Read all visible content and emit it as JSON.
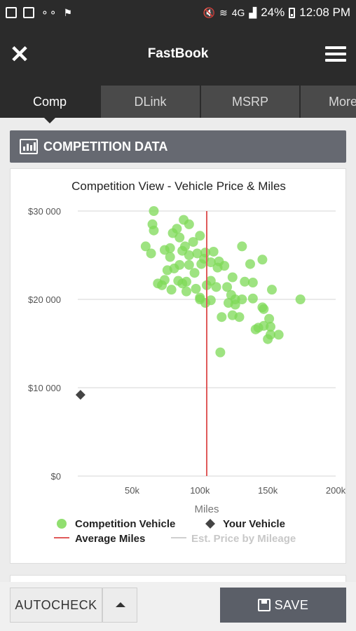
{
  "status_bar": {
    "battery": "24%",
    "time": "12:08 PM",
    "network": "4G"
  },
  "app": {
    "title": "FastBook"
  },
  "tabs": [
    {
      "label": "Comp",
      "active": true
    },
    {
      "label": "DLink",
      "active": false
    },
    {
      "label": "MSRP",
      "active": false
    },
    {
      "label": "More",
      "active": false
    }
  ],
  "section": {
    "title": "COMPETITION DATA",
    "icon": "bar-chart-icon"
  },
  "chart_data": {
    "type": "scatter",
    "title": "Competition View - Vehicle Price & Miles",
    "xlabel": "Miles",
    "ylabel": "",
    "xlim": [
      10000,
      200000
    ],
    "ylim": [
      0,
      30000
    ],
    "x_ticks": [
      {
        "value": 50000,
        "label": "50k"
      },
      {
        "value": 100000,
        "label": "100k"
      },
      {
        "value": 150000,
        "label": "150k"
      },
      {
        "value": 200000,
        "label": "200k"
      }
    ],
    "y_ticks": [
      {
        "value": 0,
        "label": "$0"
      },
      {
        "value": 10000,
        "label": "$10 000"
      },
      {
        "value": 20000,
        "label": "$20 000"
      },
      {
        "value": 30000,
        "label": "$30 000"
      }
    ],
    "grid": true,
    "legend_position": "bottom",
    "colors": {
      "competition": "#7ed957",
      "your_vehicle": "#444444",
      "average": "#e05a5a",
      "est_price": "#cfcfcf"
    },
    "legend": [
      {
        "label": "Competition Vehicle",
        "marker": "circle",
        "color": "#7ed957",
        "enabled": true
      },
      {
        "label": "Your Vehicle",
        "marker": "diamond",
        "color": "#444444",
        "enabled": true
      },
      {
        "label": "Average Miles",
        "marker": "line",
        "color": "#e05a5a",
        "enabled": true
      },
      {
        "label": "Est. Price by Mileage",
        "marker": "line",
        "color": "#cfcfcf",
        "enabled": false
      }
    ],
    "average_miles": 105000,
    "your_vehicle": {
      "x": 12000,
      "y": 9200
    },
    "series": [
      {
        "name": "Competition Vehicle",
        "points": [
          [
            66000,
            30000
          ],
          [
            65000,
            28500
          ],
          [
            66000,
            27800
          ],
          [
            88000,
            29000
          ],
          [
            92000,
            28500
          ],
          [
            80000,
            27500
          ],
          [
            83000,
            28000
          ],
          [
            85000,
            27000
          ],
          [
            95000,
            26500
          ],
          [
            100000,
            27200
          ],
          [
            89000,
            26000
          ],
          [
            60000,
            26000
          ],
          [
            64000,
            25200
          ],
          [
            74000,
            25600
          ],
          [
            78000,
            25800
          ],
          [
            87000,
            25500
          ],
          [
            92000,
            25000
          ],
          [
            98000,
            25200
          ],
          [
            104000,
            25300
          ],
          [
            110000,
            25400
          ],
          [
            103000,
            24600
          ],
          [
            108000,
            24200
          ],
          [
            114000,
            24300
          ],
          [
            118000,
            23800
          ],
          [
            101000,
            24000
          ],
          [
            78000,
            24800
          ],
          [
            85000,
            23900
          ],
          [
            92000,
            23900
          ],
          [
            96000,
            23000
          ],
          [
            90000,
            22000
          ],
          [
            81000,
            23500
          ],
          [
            76000,
            23300
          ],
          [
            74000,
            22200
          ],
          [
            69000,
            21800
          ],
          [
            72000,
            21600
          ],
          [
            84000,
            22100
          ],
          [
            87000,
            21800
          ],
          [
            79000,
            21100
          ],
          [
            90000,
            20900
          ],
          [
            105000,
            21600
          ],
          [
            108000,
            22100
          ],
          [
            112000,
            21400
          ],
          [
            120000,
            21400
          ],
          [
            124000,
            22500
          ],
          [
            133000,
            22000
          ],
          [
            139000,
            21900
          ],
          [
            139000,
            20100
          ],
          [
            121000,
            19600
          ],
          [
            126000,
            20000
          ],
          [
            131000,
            20000
          ],
          [
            129000,
            18000
          ],
          [
            124000,
            18200
          ],
          [
            126000,
            19400
          ],
          [
            116000,
            18000
          ],
          [
            100000,
            20200
          ],
          [
            104000,
            19600
          ],
          [
            108000,
            19900
          ],
          [
            147000,
            18900
          ],
          [
            146000,
            19100
          ],
          [
            147000,
            17000
          ],
          [
            152000,
            16900
          ],
          [
            150000,
            15500
          ],
          [
            152000,
            16000
          ],
          [
            158000,
            16000
          ],
          [
            151000,
            17800
          ],
          [
            174000,
            20000
          ],
          [
            153000,
            21100
          ],
          [
            115000,
            14000
          ],
          [
            131000,
            26000
          ],
          [
            137000,
            24000
          ],
          [
            146000,
            24500
          ],
          [
            123000,
            20500
          ],
          [
            113000,
            23600
          ],
          [
            97000,
            21200
          ],
          [
            100000,
            20000
          ],
          [
            141000,
            16600
          ],
          [
            143000,
            16800
          ]
        ]
      }
    ]
  },
  "bottom_bar": {
    "autocheck_label": "AUTOCHECK",
    "save_label": "SAVE"
  }
}
